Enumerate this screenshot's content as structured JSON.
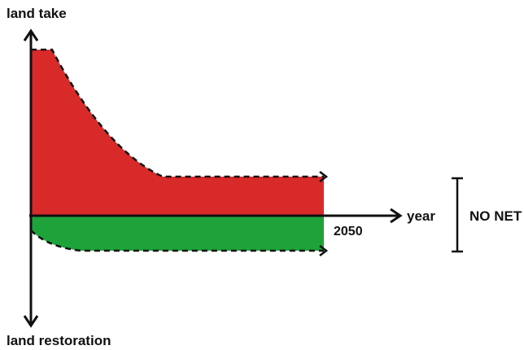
{
  "diagram": {
    "y_axis_top_label": "land take",
    "y_axis_bottom_label": "land restoration",
    "x_axis_label": "year",
    "target_year_label": "2050",
    "bracket_label": "NO NET",
    "colors": {
      "land_take_area": "#d92a2a",
      "land_restoration_area": "#1ea33a",
      "axis": "#111111",
      "background": "#ffffff"
    }
  }
}
